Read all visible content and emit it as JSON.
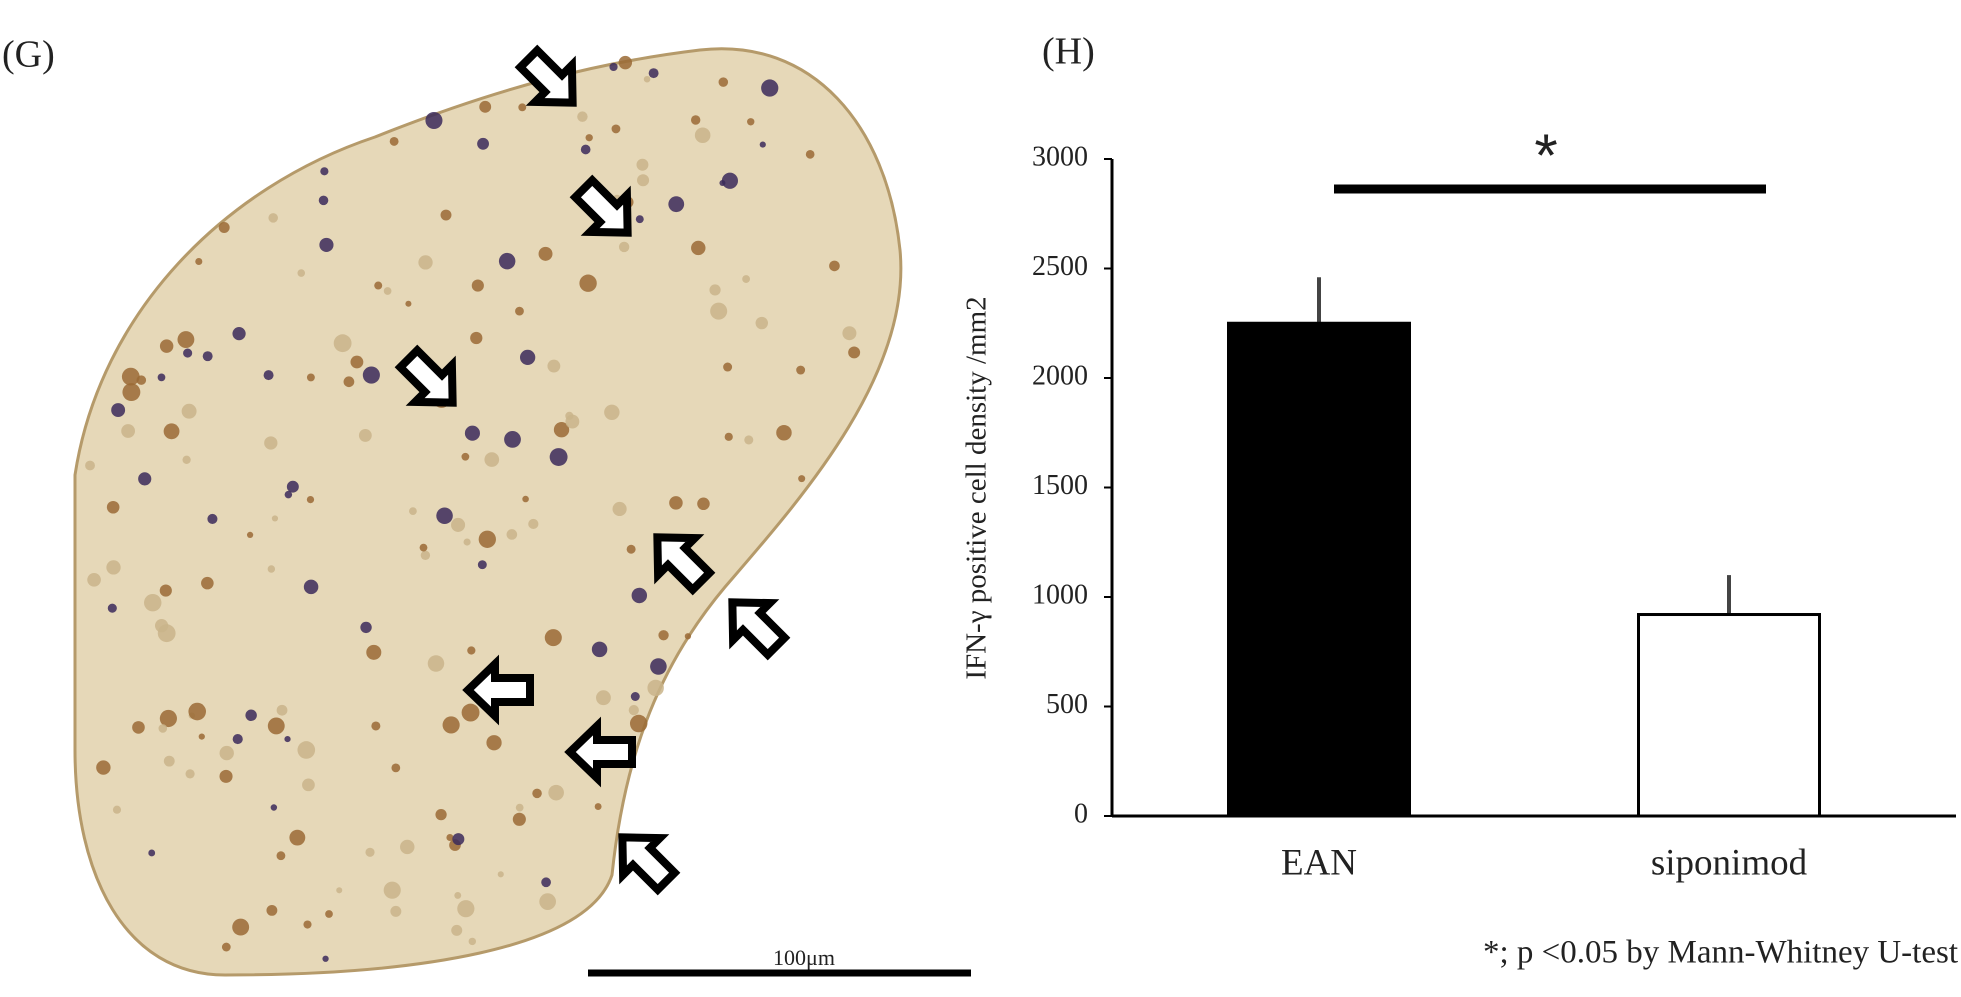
{
  "panel_labels": [
    "(G)",
    "(H)"
  ],
  "scale_bar_label": "100μm",
  "chart_data": {
    "type": "bar",
    "ylabel": "IFN-γ positive cell density  /mm2",
    "categories": [
      "EAN",
      "siponimod"
    ],
    "values": [
      2250,
      920
    ],
    "errors": [
      210,
      180
    ],
    "colors": [
      "#000000",
      "#ffffff"
    ],
    "ylim": [
      0,
      3000
    ],
    "yticks": [
      0,
      500,
      1000,
      1500,
      2000,
      2500,
      3000
    ],
    "annotations": [
      "*"
    ],
    "note": "*; p <0.05 by Mann-Whitney U-test"
  }
}
